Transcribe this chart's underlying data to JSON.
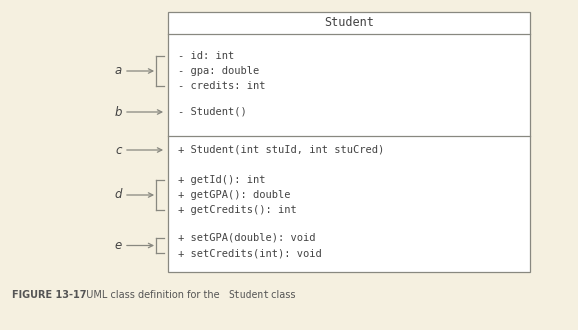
{
  "bg_color": "#f5f0e0",
  "box_color": "#ffffff",
  "box_edge_color": "#888880",
  "text_color": "#444444",
  "arrow_color": "#888880",
  "title": "Student",
  "title_fontsize": 8.5,
  "code_fontsize": 7.5,
  "label_fontsize": 8.5,
  "caption_bold": "FIGURE 13-17",
  "caption_normal": "  UML class definition for the ",
  "caption_mono": "Student",
  "caption_end": " class",
  "sections": [
    {
      "lines": [
        "- id: int",
        "- gpa: double",
        "- credits: int"
      ],
      "label": "a",
      "bracket": true
    },
    {
      "lines": [
        "- Student()"
      ],
      "label": "b",
      "bracket": false
    },
    {
      "lines": [
        "+ Student(int stuId, int stuCred)"
      ],
      "label": "c",
      "bracket": false,
      "separator_before": true
    },
    {
      "lines": [
        "+ getId(): int",
        "+ getGPA(): double",
        "+ getCredits(): int"
      ],
      "label": "d",
      "bracket": true
    },
    {
      "lines": [
        "+ setGPA(double): void",
        "+ setCredits(int): void"
      ],
      "label": "e",
      "bracket": true
    }
  ]
}
